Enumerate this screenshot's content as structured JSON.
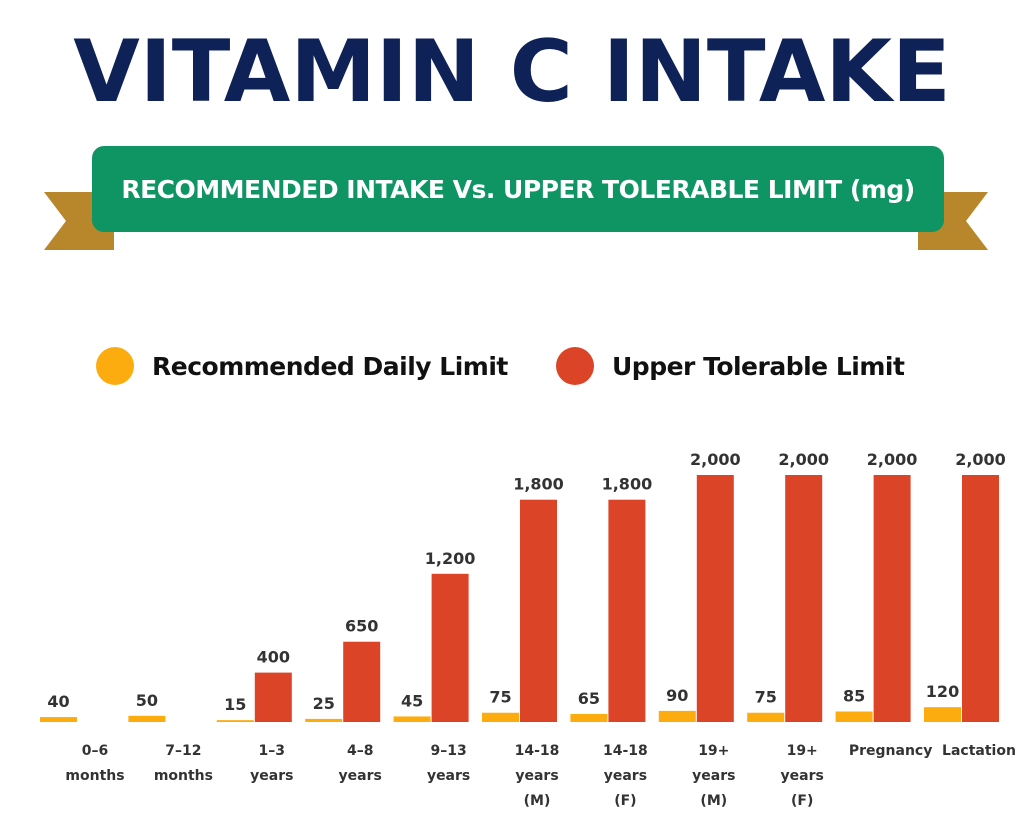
{
  "title": "VITAMIN C INTAKE",
  "subtitle": "RECOMMENDED INTAKE Vs. UPPER TOLERABLE LIMIT (mg)",
  "colors": {
    "title": "#0f2258",
    "ribbon": "#0f9463",
    "ribbon_tail": "#b8862b",
    "recommended": "#fdac10",
    "upper": "#dc4427"
  },
  "legend": {
    "recommended": "Recommended Daily Limit",
    "upper": "Upper Tolerable Limit"
  },
  "chart_data": {
    "type": "bar",
    "title": "VITAMIN C INTAKE",
    "subtitle": "RECOMMENDED INTAKE Vs. UPPER TOLERABLE LIMIT (mg)",
    "categories": [
      [
        "0–6",
        "months"
      ],
      [
        "7–12",
        "months"
      ],
      [
        "1–3",
        "years"
      ],
      [
        "4–8",
        "years"
      ],
      [
        "9–13",
        "years"
      ],
      [
        "14-18",
        "years",
        "(M)"
      ],
      [
        "14-18",
        "years",
        "(F)"
      ],
      [
        "19+",
        "years",
        "(M)"
      ],
      [
        "19+",
        "years",
        "(F)"
      ],
      [
        "Pregnancy"
      ],
      [
        "Lactation"
      ]
    ],
    "series": [
      {
        "name": "Recommended Daily Limit",
        "values": [
          40,
          50,
          15,
          25,
          45,
          75,
          65,
          90,
          75,
          85,
          120
        ],
        "labels": [
          "40",
          "50",
          "15",
          "25",
          "45",
          "75",
          "65",
          "90",
          "75",
          "85",
          "120"
        ]
      },
      {
        "name": "Upper Tolerable Limit",
        "values": [
          null,
          null,
          400,
          650,
          1200,
          1800,
          1800,
          2000,
          2000,
          2000,
          2000
        ],
        "labels": [
          "",
          "",
          "400",
          "650",
          "1,200",
          "1,800",
          "1,800",
          "2,000",
          "2,000",
          "2,000",
          "2,000"
        ]
      }
    ],
    "legend_position": "top",
    "grid": false,
    "axes_visible": false
  }
}
